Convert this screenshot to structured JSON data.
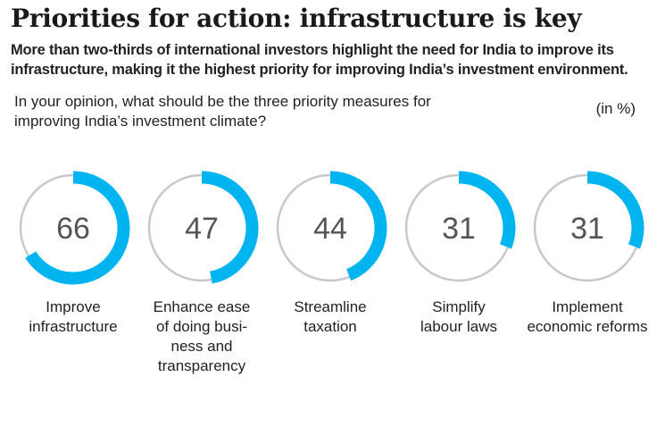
{
  "title": "Priorities for action: infrastructure is key",
  "subtitle": "More than two-thirds of international investors highlight the need for India to improve its infrastructure, making it the highest priority for improving India’s investment environment.",
  "question": "In your opinion, what should be the three priority measures for improving India’s investment climate?",
  "unit": "(in %)",
  "colors": {
    "accent": "#00B5EF",
    "track": "#c8c8c8",
    "text": "#555555"
  },
  "chart_data": {
    "type": "pie",
    "title": "Priorities for action: infrastructure is key",
    "unit": "(in %)",
    "categories": [
      "Improve infrastructure",
      "Enhance ease of doing business and transparency",
      "Streamline taxation",
      "Simplify labour laws",
      "Implement economic reforms"
    ],
    "values": [
      66,
      47,
      44,
      31,
      31
    ],
    "labels": [
      [
        "Improve",
        "infrastructure"
      ],
      [
        "Enhance ease",
        "of doing busi-",
        "ness and",
        "transparency"
      ],
      [
        "Streamline",
        "taxation"
      ],
      [
        "Simplify",
        "labour laws"
      ],
      [
        "Implement",
        "economic reforms"
      ]
    ]
  }
}
